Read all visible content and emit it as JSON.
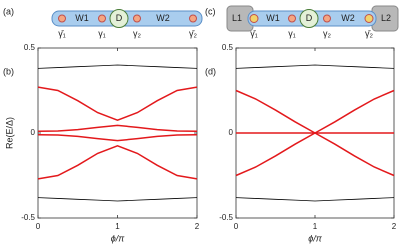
{
  "schematics": [
    {
      "panel": "(a)",
      "wires": [
        "W1",
        "W2"
      ],
      "dot": "D",
      "majoranas": [
        "γ̄₁",
        "γ₁",
        "γ₂",
        "γ̄₂"
      ]
    },
    {
      "panel": "(c)",
      "leads": [
        "L1",
        "L2"
      ],
      "wires": [
        "W1",
        "W2"
      ],
      "dot": "D",
      "majoranas": [
        "γ̄₁",
        "γ₁",
        "γ₂",
        "γ̄₂"
      ]
    }
  ],
  "chart_data": [
    {
      "type": "line",
      "panel": "(b)",
      "ylabel": "Re(E/Δ)",
      "xlabel": "ϕ/π",
      "x": [
        0,
        0.25,
        0.5,
        0.75,
        1,
        1.25,
        1.5,
        1.75,
        2
      ],
      "xlim": [
        0,
        2
      ],
      "xticks": [
        0,
        1,
        2
      ],
      "ylim": [
        -0.5,
        0.5
      ],
      "yticks": [
        -0.5,
        0,
        0.5
      ],
      "series": [
        {
          "color": "#000000",
          "values": [
            0.38,
            0.385,
            0.39,
            0.395,
            0.4,
            0.395,
            0.39,
            0.385,
            0.38
          ]
        },
        {
          "color": "#000000",
          "values": [
            -0.38,
            -0.385,
            -0.39,
            -0.395,
            -0.4,
            -0.395,
            -0.39,
            -0.385,
            -0.38
          ]
        },
        {
          "color": "#e3191c",
          "values": [
            0.27,
            0.25,
            0.19,
            0.12,
            0.075,
            0.12,
            0.19,
            0.25,
            0.27
          ]
        },
        {
          "color": "#e3191c",
          "values": [
            -0.27,
            -0.25,
            -0.19,
            -0.12,
            -0.075,
            -0.12,
            -0.19,
            -0.25,
            -0.27
          ]
        },
        {
          "color": "#e3191c",
          "values": [
            0.01,
            0.012,
            0.02,
            0.033,
            0.045,
            0.033,
            0.02,
            0.012,
            0.01
          ]
        },
        {
          "color": "#e3191c",
          "values": [
            -0.01,
            -0.012,
            -0.02,
            -0.033,
            -0.045,
            -0.033,
            -0.02,
            -0.012,
            -0.01
          ]
        }
      ]
    },
    {
      "type": "line",
      "panel": "(d)",
      "xlabel": "ϕ/π",
      "x": [
        0,
        0.25,
        0.5,
        0.75,
        1,
        1.25,
        1.5,
        1.75,
        2
      ],
      "xlim": [
        0,
        2
      ],
      "xticks": [
        0,
        1,
        2
      ],
      "ylim": [
        -0.5,
        0.5
      ],
      "yticks": [
        -0.5,
        0,
        0.5
      ],
      "series": [
        {
          "color": "#000000",
          "values": [
            0.38,
            0.385,
            0.39,
            0.395,
            0.4,
            0.395,
            0.39,
            0.385,
            0.38
          ]
        },
        {
          "color": "#000000",
          "values": [
            -0.38,
            -0.385,
            -0.39,
            -0.395,
            -0.4,
            -0.395,
            -0.39,
            -0.385,
            -0.38
          ]
        },
        {
          "color": "#e3191c",
          "values": [
            0.25,
            0.2,
            0.135,
            0.065,
            0,
            -0.065,
            -0.135,
            -0.2,
            -0.25
          ]
        },
        {
          "color": "#e3191c",
          "values": [
            -0.25,
            -0.2,
            -0.135,
            -0.065,
            0,
            0.065,
            0.135,
            0.2,
            0.25
          ]
        },
        {
          "color": "#e3191c",
          "values": [
            0,
            0,
            0,
            0,
            0,
            0,
            0,
            0,
            0
          ]
        }
      ]
    }
  ]
}
